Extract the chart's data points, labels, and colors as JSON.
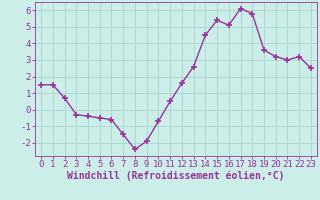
{
  "x": [
    0,
    1,
    2,
    3,
    4,
    5,
    6,
    7,
    8,
    9,
    10,
    11,
    12,
    13,
    14,
    15,
    16,
    17,
    18,
    19,
    20,
    21,
    22,
    23
  ],
  "y": [
    1.5,
    1.5,
    0.7,
    -0.3,
    -0.4,
    -0.5,
    -0.6,
    -1.5,
    -2.4,
    -1.9,
    -0.7,
    0.5,
    1.6,
    2.6,
    4.5,
    5.4,
    5.1,
    6.1,
    5.8,
    3.6,
    3.2,
    3.0,
    3.2,
    2.5
  ],
  "color": "#993399",
  "bg_color": "#cceee8",
  "grid_color": "#aad4ce",
  "xlabel": "Windchill (Refroidissement éolien,°C)",
  "ylim": [
    -2.8,
    6.5
  ],
  "xlim": [
    -0.5,
    23.5
  ],
  "yticks": [
    -2,
    -1,
    0,
    1,
    2,
    3,
    4,
    5,
    6
  ],
  "xticks": [
    0,
    1,
    2,
    3,
    4,
    5,
    6,
    7,
    8,
    9,
    10,
    11,
    12,
    13,
    14,
    15,
    16,
    17,
    18,
    19,
    20,
    21,
    22,
    23
  ],
  "marker": "+",
  "markersize": 4,
  "linewidth": 1.0,
  "xlabel_fontsize": 7,
  "tick_fontsize": 6.5
}
